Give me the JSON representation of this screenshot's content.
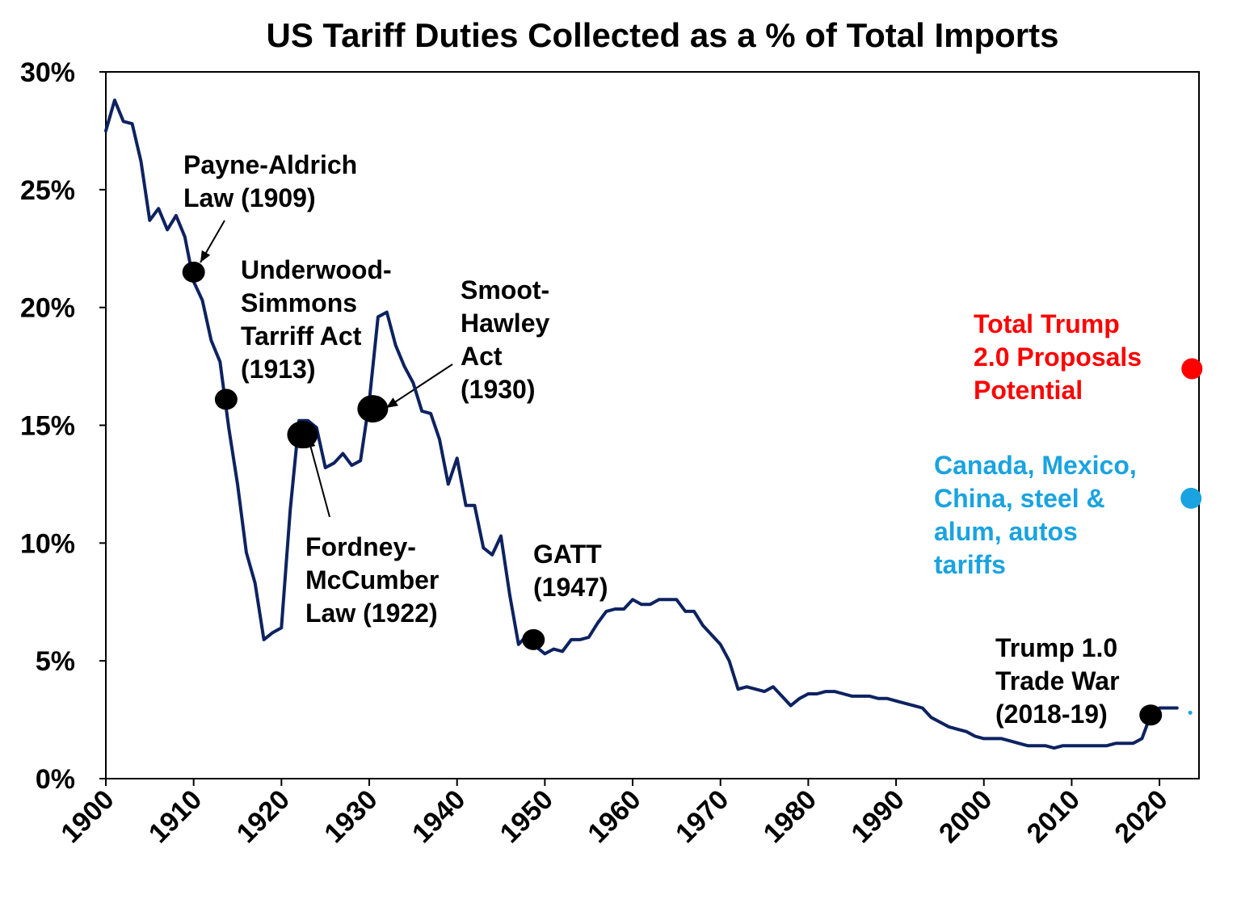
{
  "chart_data": {
    "type": "line",
    "title": "US Tariff Duties Collected as a % of Total Imports",
    "xlabel": "",
    "ylabel": "",
    "xlim": [
      1900,
      2024.5
    ],
    "ylim": [
      0,
      30
    ],
    "y_ticks": [
      "0%",
      "5%",
      "10%",
      "15%",
      "20%",
      "25%",
      "30%"
    ],
    "y_tick_values": [
      0,
      5,
      10,
      15,
      20,
      25,
      30
    ],
    "x_ticks": [
      "1900",
      "1910",
      "1920",
      "1930",
      "1940",
      "1950",
      "1960",
      "1970",
      "1980",
      "1990",
      "2000",
      "2010",
      "2020"
    ],
    "x_tick_values": [
      1900,
      1910,
      1920,
      1930,
      1940,
      1950,
      1960,
      1970,
      1980,
      1990,
      2000,
      2010,
      2020
    ],
    "grid": false,
    "legend": "none",
    "line_color": "#0d2260",
    "series": [
      {
        "x": [
          1900,
          1901,
          1902,
          1903,
          1904,
          1905,
          1906,
          1907,
          1908,
          1909,
          1910,
          1911,
          1912,
          1913,
          1914,
          1915,
          1916,
          1917,
          1918,
          1919,
          1920,
          1921,
          1922,
          1923,
          1924,
          1925,
          1926,
          1927,
          1928,
          1929,
          1930,
          1931,
          1932,
          1933,
          1934,
          1935,
          1936,
          1937,
          1938,
          1939,
          1940,
          1941,
          1942,
          1943,
          1944,
          1945,
          1946,
          1947,
          1948,
          1949,
          1950,
          1951,
          1952,
          1953,
          1954,
          1955,
          1956,
          1957,
          1958,
          1959,
          1960,
          1961,
          1962,
          1963,
          1964,
          1965,
          1966,
          1967,
          1968,
          1969,
          1970,
          1971,
          1972,
          1973,
          1974,
          1975,
          1976,
          1977,
          1978,
          1979,
          1980,
          1981,
          1982,
          1983,
          1984,
          1985,
          1986,
          1987,
          1988,
          1989,
          1990,
          1991,
          1992,
          1993,
          1994,
          1995,
          1996,
          1997,
          1998,
          1999,
          2000,
          2001,
          2002,
          2003,
          2004,
          2005,
          2006,
          2007,
          2008,
          2009,
          2010,
          2011,
          2012,
          2013,
          2014,
          2015,
          2016,
          2017,
          2018,
          2019,
          2020,
          2021,
          2022
        ],
        "values": [
          27.5,
          28.8,
          27.9,
          27.8,
          26.2,
          23.7,
          24.2,
          23.3,
          23.9,
          23.0,
          21.1,
          20.3,
          18.6,
          17.7,
          14.9,
          12.5,
          9.6,
          8.3,
          5.9,
          6.2,
          6.4,
          11.4,
          15.2,
          15.2,
          14.9,
          13.2,
          13.4,
          13.8,
          13.3,
          13.5,
          16.0,
          19.6,
          19.8,
          18.4,
          17.5,
          16.8,
          15.6,
          15.5,
          14.4,
          12.5,
          13.6,
          11.6,
          11.6,
          9.8,
          9.5,
          10.3,
          7.8,
          5.7,
          6.1,
          5.6,
          5.3,
          5.5,
          5.4,
          5.9,
          5.9,
          6.0,
          6.6,
          7.1,
          7.2,
          7.2,
          7.6,
          7.4,
          7.4,
          7.6,
          7.6,
          7.6,
          7.1,
          7.1,
          6.5,
          6.1,
          5.7,
          5.0,
          3.8,
          3.9,
          3.8,
          3.7,
          3.9,
          3.5,
          3.1,
          3.4,
          3.6,
          3.6,
          3.7,
          3.7,
          3.6,
          3.5,
          3.5,
          3.5,
          3.4,
          3.4,
          3.3,
          3.2,
          3.1,
          3.0,
          2.6,
          2.4,
          2.2,
          2.1,
          2.0,
          1.8,
          1.7,
          1.7,
          1.7,
          1.6,
          1.5,
          1.4,
          1.4,
          1.4,
          1.3,
          1.4,
          1.4,
          1.4,
          1.4,
          1.4,
          1.4,
          1.5,
          1.5,
          1.5,
          1.7,
          2.7,
          3.0,
          3.0,
          3.0
        ]
      }
    ],
    "markers": [
      {
        "x": 1910,
        "y": 21.5,
        "size": "small"
      },
      {
        "x": 1913.7,
        "y": 16.1,
        "size": "small"
      },
      {
        "x": 1922.4,
        "y": 14.6,
        "size": "large"
      },
      {
        "x": 1930.4,
        "y": 15.7,
        "size": "large"
      },
      {
        "x": 1948.7,
        "y": 5.9,
        "size": "small"
      },
      {
        "x": 2019,
        "y": 2.7,
        "size": "small"
      }
    ],
    "annotations": [
      {
        "lines": [
          "Payne-Aldrich",
          "Law (1909)"
        ],
        "color": "#000000"
      },
      {
        "lines": [
          "Underwood-",
          "Simmons",
          "Tarriff Act",
          "(1913)"
        ],
        "color": "#000000"
      },
      {
        "lines": [
          "Smoot-",
          "Hawley",
          "Act",
          "(1930)"
        ],
        "color": "#000000"
      },
      {
        "lines": [
          "Fordney-",
          "McCumber",
          "Law (1922)"
        ],
        "color": "#000000"
      },
      {
        "lines": [
          "GATT",
          "(1947)"
        ],
        "color": "#000000"
      },
      {
        "lines": [
          "Trump 1.0",
          "Trade War",
          "(2018-19)"
        ],
        "color": "#000000"
      },
      {
        "lines": [
          "Total Trump",
          "2.0 Proposals",
          "Potential"
        ],
        "color": "#ff0000"
      },
      {
        "lines": [
          "Canada, Mexico,",
          "China, steel &",
          "alum, autos",
          "tariffs"
        ],
        "color": "#1aa3e0"
      }
    ],
    "scenario_points": [
      {
        "x": 2023.7,
        "y": 17.4,
        "color": "#ff0000"
      },
      {
        "x": 2023.6,
        "y": 11.9,
        "color": "#1aa3e0"
      },
      {
        "x": 2023.5,
        "y": 2.8,
        "color": "#1aa3e0"
      }
    ]
  }
}
